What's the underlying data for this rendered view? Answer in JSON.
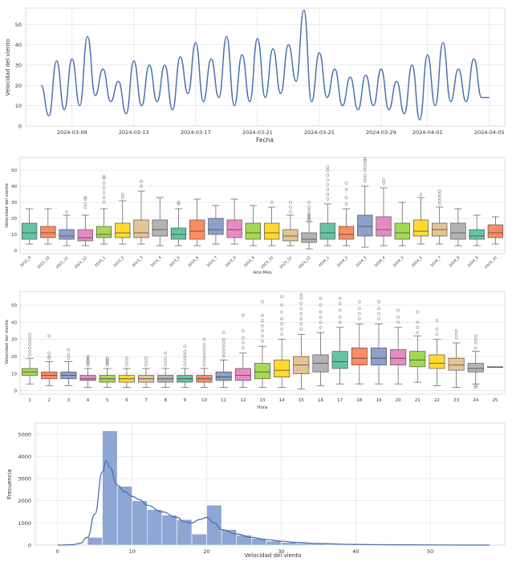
{
  "chart_data": [
    {
      "type": "line",
      "xlabel": "Fecha",
      "ylabel": "Velocidad del viento",
      "ylim": [
        0,
        58
      ],
      "yticks": [
        0,
        10,
        20,
        30,
        40,
        50
      ],
      "xlim": [
        "2024-03-06",
        "2024-04-06"
      ],
      "xticks": [
        "2024-03-09",
        "2024-03-13",
        "2024-03-17",
        "2024-03-21",
        "2024-03-25",
        "2024-03-29",
        "2024-04-01",
        "2024-04-05"
      ],
      "grid": true,
      "color": "#4c72b0",
      "x": [
        "2024-03-07",
        "2024-03-07 12:00",
        "2024-03-08",
        "2024-03-08 12:00",
        "2024-03-09",
        "2024-03-09 12:00",
        "2024-03-10",
        "2024-03-10 12:00",
        "2024-03-11",
        "2024-03-11 12:00",
        "2024-03-12",
        "2024-03-12 12:00",
        "2024-03-13",
        "2024-03-13 12:00",
        "2024-03-14",
        "2024-03-14 12:00",
        "2024-03-15",
        "2024-03-15 12:00",
        "2024-03-16",
        "2024-03-16 12:00",
        "2024-03-17",
        "2024-03-17 12:00",
        "2024-03-18",
        "2024-03-18 12:00",
        "2024-03-19",
        "2024-03-19 12:00",
        "2024-03-20",
        "2024-03-20 12:00",
        "2024-03-21",
        "2024-03-21 12:00",
        "2024-03-22",
        "2024-03-22 12:00",
        "2024-03-23",
        "2024-03-23 12:00",
        "2024-03-24",
        "2024-03-24 12:00",
        "2024-03-25",
        "2024-03-25 12:00",
        "2024-03-26",
        "2024-03-26 12:00",
        "2024-03-27",
        "2024-03-27 12:00",
        "2024-03-28",
        "2024-03-28 12:00",
        "2024-03-29",
        "2024-03-29 12:00",
        "2024-03-30",
        "2024-03-30 12:00",
        "2024-03-31",
        "2024-03-31 12:00",
        "2024-04-01",
        "2024-04-01 12:00",
        "2024-04-02",
        "2024-04-02 12:00",
        "2024-04-03",
        "2024-04-03 12:00",
        "2024-04-04",
        "2024-04-04 12:00",
        "2024-04-05"
      ],
      "y": [
        20,
        5,
        32,
        8,
        33,
        10,
        44,
        15,
        28,
        12,
        22,
        6,
        32,
        10,
        30,
        12,
        30,
        8,
        34,
        16,
        41,
        12,
        33,
        14,
        44,
        10,
        35,
        12,
        43,
        14,
        38,
        16,
        40,
        22,
        57,
        12,
        36,
        14,
        28,
        10,
        24,
        8,
        25,
        10,
        28,
        8,
        22,
        6,
        30,
        3,
        35,
        10,
        41,
        12,
        28,
        12,
        33,
        14,
        14
      ]
    },
    {
      "type": "box",
      "xlabel": "Año Mes",
      "ylabel": "Velocidad del viento",
      "ylim": [
        -2,
        58
      ],
      "yticks": [
        0,
        10,
        20,
        30,
        40,
        50
      ],
      "grid": true,
      "categories": [
        "2022_9",
        "2022_10",
        "2022_11",
        "2022_12",
        "2023_1",
        "2023_2",
        "2023_3",
        "2023_4",
        "2023_5",
        "2023_6",
        "2023_7",
        "2023_8",
        "2023_9",
        "2023_10",
        "2023_11",
        "2023_12",
        "2024_1",
        "2024_2",
        "2024_3",
        "2024_4",
        "2024_5",
        "2024_6",
        "2024_7",
        "2024_8",
        "2024_9",
        "2024_10"
      ],
      "colors": [
        "#66c2a5",
        "#fc8d62",
        "#8da0cb",
        "#e78ac3",
        "#a6d854",
        "#ffd92f",
        "#e5c494",
        "#b3b3b3",
        "#66c2a5",
        "#fc8d62",
        "#8da0cb",
        "#e78ac3",
        "#a6d854",
        "#ffd92f",
        "#e5c494",
        "#b3b3b3",
        "#66c2a5",
        "#fc8d62",
        "#8da0cb",
        "#e78ac3",
        "#a6d854",
        "#ffd92f",
        "#e5c494",
        "#b3b3b3",
        "#66c2a5",
        "#fc8d62"
      ],
      "boxes": [
        {
          "low": 4,
          "q1": 7,
          "median": 11,
          "q3": 17,
          "high": 26,
          "outliers": []
        },
        {
          "low": 4,
          "q1": 8,
          "median": 11,
          "q3": 15,
          "high": 26,
          "outliers": []
        },
        {
          "low": 3,
          "q1": 7,
          "median": 9,
          "q3": 13,
          "high": 22,
          "outliers": [
            24
          ]
        },
        {
          "low": 3,
          "q1": 6,
          "median": 8,
          "q3": 13,
          "high": 22,
          "outliers": [
            27,
            29,
            32,
            33
          ]
        },
        {
          "low": 4,
          "q1": 8,
          "median": 10,
          "q3": 15,
          "high": 26,
          "outliers": [
            30,
            33,
            36,
            39,
            42,
            45,
            46
          ]
        },
        {
          "low": 4,
          "q1": 8,
          "median": 11,
          "q3": 17,
          "high": 31,
          "outliers": [
            33,
            35
          ]
        },
        {
          "low": 4,
          "q1": 8,
          "median": 11,
          "q3": 19,
          "high": 37,
          "outliers": [
            40,
            43
          ]
        },
        {
          "low": 3,
          "q1": 9,
          "median": 13,
          "q3": 19,
          "high": 33,
          "outliers": []
        },
        {
          "low": 3,
          "q1": 7,
          "median": 10,
          "q3": 14,
          "high": 26,
          "outliers": [
            29,
            30
          ]
        },
        {
          "low": 3,
          "q1": 7,
          "median": 12,
          "q3": 19,
          "high": 32,
          "outliers": []
        },
        {
          "low": 4,
          "q1": 10,
          "median": 13,
          "q3": 20,
          "high": 28,
          "outliers": []
        },
        {
          "low": 4,
          "q1": 8,
          "median": 13,
          "q3": 19,
          "high": 32,
          "outliers": []
        },
        {
          "low": 3,
          "q1": 7,
          "median": 11,
          "q3": 17,
          "high": 28,
          "outliers": []
        },
        {
          "low": 3,
          "q1": 7,
          "median": 11,
          "q3": 17,
          "high": 27,
          "outliers": [
            30
          ]
        },
        {
          "low": 3,
          "q1": 6,
          "median": 9,
          "q3": 13,
          "high": 22,
          "outliers": [
            24,
            27,
            30
          ]
        },
        {
          "low": 1,
          "q1": 5,
          "median": 7,
          "q3": 11,
          "high": 18,
          "outliers": [
            19,
            20,
            21,
            22,
            23,
            25,
            27,
            30
          ]
        },
        {
          "low": 3,
          "q1": 7,
          "median": 11,
          "q3": 17,
          "high": 29,
          "outliers": [
            32,
            35,
            38,
            41,
            44,
            47,
            50,
            52
          ]
        },
        {
          "low": 3,
          "q1": 7,
          "median": 10,
          "q3": 15,
          "high": 26,
          "outliers": [
            29,
            33,
            38,
            42
          ]
        },
        {
          "low": 2,
          "q1": 9,
          "median": 15,
          "q3": 22,
          "high": 40,
          "outliers": [
            43,
            45,
            47,
            50,
            52,
            54,
            56,
            57
          ]
        },
        {
          "low": 3,
          "q1": 9,
          "median": 13,
          "q3": 21,
          "high": 39,
          "outliers": [
            42,
            44
          ]
        },
        {
          "low": 3,
          "q1": 7,
          "median": 11,
          "q3": 17,
          "high": 30,
          "outliers": []
        },
        {
          "low": 4,
          "q1": 9,
          "median": 12,
          "q3": 19,
          "high": 33,
          "outliers": [
            35
          ]
        },
        {
          "low": 4,
          "q1": 9,
          "median": 13,
          "q3": 17,
          "high": 27,
          "outliers": [
            29,
            31,
            33,
            35,
            37
          ]
        },
        {
          "low": 3,
          "q1": 7,
          "median": 11,
          "q3": 17,
          "high": 26,
          "outliers": []
        },
        {
          "low": 3,
          "q1": 7,
          "median": 9,
          "q3": 13,
          "high": 22,
          "outliers": []
        },
        {
          "low": 4,
          "q1": 8,
          "median": 11,
          "q3": 16,
          "high": 21,
          "outliers": []
        }
      ]
    },
    {
      "type": "box",
      "xlabel": "Hora",
      "ylabel": "Velocidad del viento",
      "ylim": [
        -2,
        58
      ],
      "yticks": [
        0,
        10,
        20,
        30,
        40,
        50
      ],
      "grid": true,
      "categories": [
        "1",
        "2",
        "3",
        "4",
        "5",
        "6",
        "7",
        "8",
        "9",
        "10",
        "11",
        "12",
        "13",
        "14",
        "15",
        "16",
        "17",
        "18",
        "19",
        "20",
        "21",
        "22",
        "23",
        "24",
        "25"
      ],
      "colors": [
        "#a6d854",
        "#fc8d62",
        "#8da0cb",
        "#e78ac3",
        "#a6d854",
        "#ffd92f",
        "#e5c494",
        "#b3b3b3",
        "#66c2a5",
        "#fc8d62",
        "#8da0cb",
        "#e78ac3",
        "#a6d854",
        "#ffd92f",
        "#e5c494",
        "#b3b3b3",
        "#66c2a5",
        "#fc8d62",
        "#8da0cb",
        "#e78ac3",
        "#a6d854",
        "#ffd92f",
        "#e5c494",
        "#b3b3b3",
        "#66c2a5"
      ],
      "boxes": [
        {
          "low": 4,
          "q1": 9,
          "median": 11,
          "q3": 13,
          "high": 19,
          "outliers": [
            21,
            23,
            25,
            27,
            29,
            31,
            33
          ]
        },
        {
          "low": 3,
          "q1": 7,
          "median": 9,
          "q3": 11,
          "high": 17,
          "outliers": [
            19,
            20,
            22,
            32
          ]
        },
        {
          "low": 3,
          "q1": 7,
          "median": 9,
          "q3": 11,
          "high": 17,
          "outliers": [
            19,
            21,
            24
          ]
        },
        {
          "low": 2,
          "q1": 6,
          "median": 7,
          "q3": 9,
          "high": 13,
          "outliers": [
            15,
            16,
            17,
            18,
            19,
            20
          ]
        },
        {
          "low": 2,
          "q1": 5,
          "median": 7,
          "q3": 9,
          "high": 13,
          "outliers": [
            15,
            16,
            17,
            18,
            19
          ]
        },
        {
          "low": 2,
          "q1": 5,
          "median": 7,
          "q3": 9,
          "high": 13,
          "outliers": [
            15,
            17,
            19
          ]
        },
        {
          "low": 2,
          "q1": 5,
          "median": 7,
          "q3": 9,
          "high": 13,
          "outliers": [
            15,
            17,
            19
          ]
        },
        {
          "low": 2,
          "q1": 5,
          "median": 7,
          "q3": 9,
          "high": 13,
          "outliers": [
            15,
            17,
            19,
            22
          ]
        },
        {
          "low": 2,
          "q1": 5,
          "median": 7,
          "q3": 9,
          "high": 13,
          "outliers": [
            15,
            17,
            19,
            21,
            23,
            26
          ]
        },
        {
          "low": 2,
          "q1": 5,
          "median": 7,
          "q3": 9,
          "high": 13,
          "outliers": [
            15,
            17,
            19,
            21,
            23,
            25,
            27,
            30
          ]
        },
        {
          "low": 2,
          "q1": 6,
          "median": 8,
          "q3": 11,
          "high": 18,
          "outliers": [
            20,
            22,
            24,
            26,
            28,
            30,
            34
          ]
        },
        {
          "low": 2,
          "q1": 6,
          "median": 9,
          "q3": 13,
          "high": 22,
          "outliers": [
            25,
            28,
            31,
            35,
            44
          ]
        },
        {
          "low": 2,
          "q1": 7,
          "median": 11,
          "q3": 16,
          "high": 26,
          "outliers": [
            29,
            32,
            35,
            38,
            41,
            44,
            52
          ]
        },
        {
          "low": 2,
          "q1": 8,
          "median": 12,
          "q3": 18,
          "high": 30,
          "outliers": [
            33,
            36,
            39,
            42,
            46,
            50,
            55
          ]
        },
        {
          "low": 1,
          "q1": 10,
          "median": 15,
          "q3": 20,
          "high": 33,
          "outliers": [
            36,
            39,
            42,
            45,
            48,
            51,
            54,
            56
          ]
        },
        {
          "low": 3,
          "q1": 11,
          "median": 16,
          "q3": 21,
          "high": 34,
          "outliers": [
            37,
            40,
            43,
            46,
            50,
            54
          ]
        },
        {
          "low": 4,
          "q1": 13,
          "median": 17,
          "q3": 23,
          "high": 37,
          "outliers": [
            40,
            43,
            47,
            51,
            54
          ]
        },
        {
          "low": 4,
          "q1": 15,
          "median": 19,
          "q3": 25,
          "high": 39,
          "outliers": [
            42,
            45,
            48,
            52
          ]
        },
        {
          "low": 4,
          "q1": 15,
          "median": 19,
          "q3": 25,
          "high": 39,
          "outliers": [
            42,
            45,
            48,
            52
          ]
        },
        {
          "low": 4,
          "q1": 15,
          "median": 19,
          "q3": 24,
          "high": 37,
          "outliers": [
            40,
            43,
            47
          ]
        },
        {
          "low": 5,
          "q1": 14,
          "median": 18,
          "q3": 23,
          "high": 32,
          "outliers": [
            34,
            37,
            40,
            46
          ]
        },
        {
          "low": 3,
          "q1": 13,
          "median": 16,
          "q3": 21,
          "high": 30,
          "outliers": [
            33,
            36,
            41
          ]
        },
        {
          "low": 2,
          "q1": 12,
          "median": 15,
          "q3": 19,
          "high": 28,
          "outliers": [
            31,
            33,
            35
          ]
        },
        {
          "low": 4,
          "q1": 11,
          "median": 13,
          "q3": 16,
          "high": 23,
          "outliers": [
            2,
            3,
            25,
            28,
            30,
            32
          ]
        },
        {
          "low": 14,
          "q1": 14,
          "median": 14,
          "q3": 14,
          "high": 14,
          "outliers": []
        }
      ]
    },
    {
      "type": "histogram",
      "xlabel": "Velocidad del viento",
      "ylabel": "Frecuencia",
      "xlim": [
        -3,
        60
      ],
      "ylim": [
        0,
        5500
      ],
      "xticks": [
        0,
        10,
        20,
        30,
        40,
        50
      ],
      "yticks": [
        0,
        1000,
        2000,
        3000,
        4000,
        5000
      ],
      "grid": true,
      "color": "#8ea6d4",
      "kde_color": "#4c72b0",
      "bin_edges": [
        4,
        6,
        8,
        10,
        12,
        14,
        16,
        18,
        20,
        22,
        24,
        26,
        28,
        30,
        32,
        34,
        36,
        38,
        40,
        42,
        44,
        46,
        48,
        50,
        52,
        54,
        56
      ],
      "counts": [
        350,
        5150,
        2650,
        2000,
        1600,
        1350,
        1150,
        500,
        1800,
        700,
        450,
        300,
        180,
        120,
        80,
        60,
        40,
        30,
        20,
        15,
        10,
        8,
        5,
        3,
        2,
        2
      ],
      "kde_x": [
        0,
        2,
        3,
        4,
        5,
        6,
        6.5,
        7,
        8,
        9,
        10,
        11,
        12,
        14,
        16,
        17,
        18,
        19,
        20,
        21,
        22,
        24,
        26,
        28,
        30,
        32,
        35,
        40,
        45,
        50,
        55,
        58
      ],
      "kde_y": [
        0,
        20,
        80,
        350,
        1400,
        3300,
        3800,
        3500,
        2700,
        2400,
        2200,
        2050,
        1800,
        1500,
        1250,
        1050,
        1000,
        1150,
        1250,
        1000,
        700,
        500,
        350,
        250,
        180,
        120,
        70,
        30,
        15,
        8,
        3,
        0
      ]
    }
  ]
}
